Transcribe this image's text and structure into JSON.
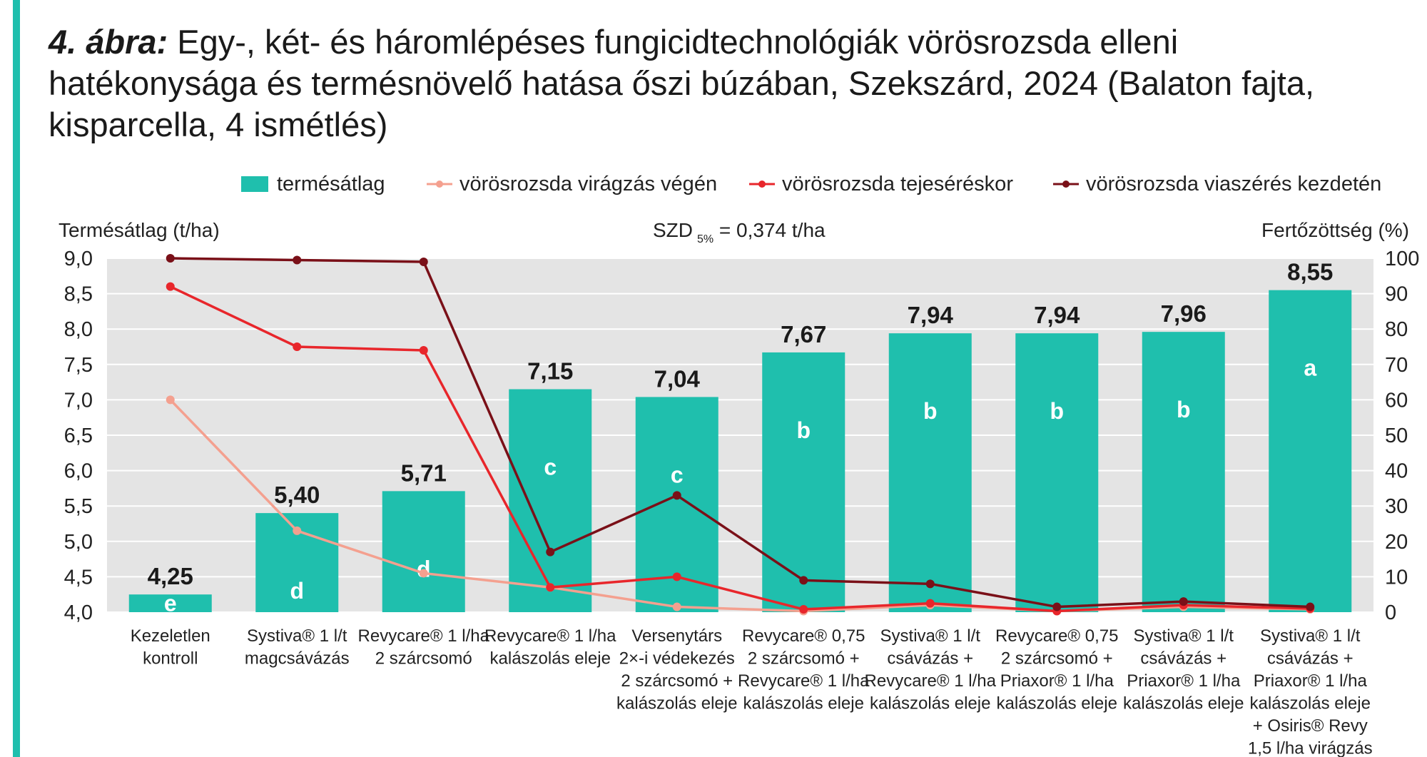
{
  "figure": {
    "number": "4. ábra:",
    "title_line1": " Egy-, két- és háromlépéses fungicidtechnológiák vörösrozsda elleni",
    "title_line2": "hatékonysága és termésnövelő hatása őszi búzában, Szekszárd, 2024 (Balaton fajta,",
    "title_line3": "kisparcella, 4 ismétlés)"
  },
  "colors": {
    "accent": "#1fbfad",
    "bar": "#1fbfad",
    "plot_bg": "#e4e4e4",
    "s1": "#f4a08f",
    "s2": "#e8262b",
    "s3": "#7a1018"
  },
  "chart_data": {
    "type": "bar",
    "y_left_label": "Termésátlag (t/ha)",
    "y_right_label": "Fertőzöttség (%)",
    "szd_prefix": "SZD",
    "szd_sub": "5%",
    "szd_value": " = 0,374 t/ha",
    "ylim": [
      4.0,
      9.0
    ],
    "y_right_lim": [
      0,
      100
    ],
    "y_ticks": [
      "4,0",
      "4,5",
      "5,0",
      "5,5",
      "6,0",
      "6,5",
      "7,0",
      "7,5",
      "8,0",
      "8,5",
      "9,0"
    ],
    "y_right_ticks": [
      "0",
      "10",
      "20",
      "30",
      "40",
      "50",
      "60",
      "70",
      "80",
      "90",
      "100"
    ],
    "grid": true,
    "legend_position": "top",
    "categories": [
      [
        "Kezeletlen",
        "kontroll"
      ],
      [
        "Systiva® 1 l/t",
        "magcsávázás"
      ],
      [
        "Revycare® 1 l/ha",
        "2 szárcsomó"
      ],
      [
        "Revycare® 1 l/ha",
        "kalászolás eleje"
      ],
      [
        "Versenytárs",
        "2×-i védekezés",
        "2 szárcsomó +",
        "kalászolás eleje"
      ],
      [
        "Revycare® 0,75",
        "2 szárcsomó +",
        "Revycare® 1 l/ha",
        "kalászolás eleje"
      ],
      [
        "Systiva® 1 l/t",
        "csávázás +",
        "Revycare® 1 l/ha",
        "kalászolás eleje"
      ],
      [
        "Revycare® 0,75",
        "2 szárcsomó +",
        "Priaxor® 1 l/ha",
        "kalászolás eleje"
      ],
      [
        "Systiva® 1 l/t",
        "csávázás +",
        "Priaxor® 1 l/ha",
        "kalászolás eleje"
      ],
      [
        "Systiva® 1 l/t",
        "csávázás +",
        "Priaxor® 1 l/ha",
        "kalászolás eleje",
        "+ Osiris® Revy",
        "1,5 l/ha virágzás"
      ]
    ],
    "bar_series": {
      "name": "termésátlag",
      "values": [
        4.25,
        5.4,
        5.71,
        7.15,
        7.04,
        7.67,
        7.94,
        7.94,
        7.96,
        8.55
      ],
      "value_labels": [
        "4,25",
        "5,40",
        "5,71",
        "7,15",
        "7,04",
        "7,67",
        "7,94",
        "7,94",
        "7,96",
        "8,55"
      ],
      "letters": [
        "e",
        "d",
        "d",
        "c",
        "c",
        "b",
        "b",
        "b",
        "b",
        "a"
      ]
    },
    "line_series": [
      {
        "name": "vörösrozsda virágzás végén",
        "color": "#f4a08f",
        "values": [
          60,
          23,
          11,
          7,
          1.5,
          0.3,
          2,
          0.3,
          1.5,
          0.8
        ]
      },
      {
        "name": "vörösrozsda tejeséréskor",
        "color": "#e8262b",
        "values": [
          92,
          75,
          74,
          7,
          10,
          0.8,
          2.5,
          0.3,
          2,
          1
        ]
      },
      {
        "name": "vörösrozsda viaszérés kezdetén",
        "color": "#7a1018",
        "values": [
          100,
          99.5,
          99,
          17,
          33,
          9,
          8,
          1.5,
          3,
          1.5
        ]
      }
    ]
  }
}
